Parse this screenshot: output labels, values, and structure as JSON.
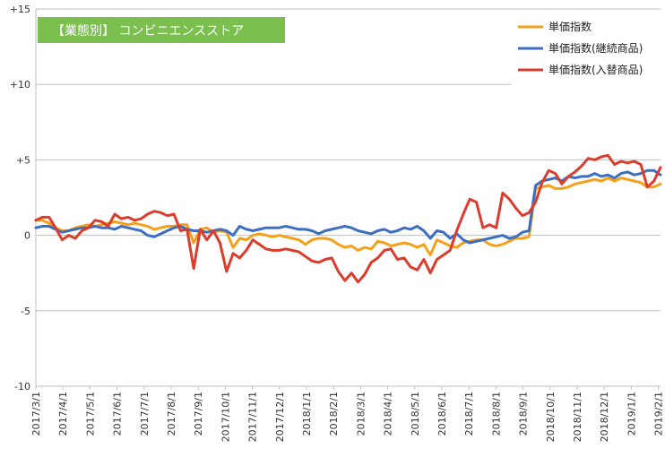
{
  "chart_data": {
    "type": "line",
    "title": "【業態別】 コンビニエンスストア",
    "title_bg_color": "#7bbf4e",
    "ylim": [
      -10,
      15
    ],
    "y_ticks": [
      {
        "value": 15,
        "label": "+15"
      },
      {
        "value": 10,
        "label": "+10"
      },
      {
        "value": 5,
        "label": "+5"
      },
      {
        "value": 0,
        "label": "0"
      },
      {
        "value": -5,
        "label": "-5"
      },
      {
        "value": -10,
        "label": "-10"
      }
    ],
    "grid": true,
    "legend_position": "top-right",
    "x_labels": [
      "2017/3/1",
      "2017/4/1",
      "2017/5/1",
      "2017/6/1",
      "2017/7/1",
      "2017/8/1",
      "2017/9/1",
      "2017/10/1",
      "2017/11/1",
      "2017/12/1",
      "2018/1/1",
      "2018/2/1",
      "2018/3/1",
      "2018/4/1",
      "2018/5/1",
      "2018/6/1",
      "2018/7/1",
      "2018/8/1",
      "2018/9/1",
      "2018/10/1",
      "2018/11/1",
      "2018/12/1",
      "2019/1/1",
      "2019/2/1"
    ],
    "series": [
      {
        "name": "単価指数",
        "color": "#f5a01a",
        "values": [
          1.0,
          1.0,
          0.8,
          0.5,
          0.3,
          0.3,
          0.5,
          0.6,
          0.7,
          0.6,
          0.7,
          0.8,
          0.9,
          0.8,
          0.7,
          0.8,
          0.7,
          0.6,
          0.4,
          0.5,
          0.6,
          0.6,
          0.7,
          0.7,
          -0.5,
          0.4,
          0.5,
          0.2,
          0.3,
          0.2,
          -0.8,
          -0.2,
          -0.3,
          0.0,
          0.1,
          0.0,
          -0.1,
          0.0,
          -0.1,
          -0.2,
          -0.3,
          -0.6,
          -0.3,
          -0.2,
          -0.2,
          -0.3,
          -0.6,
          -0.8,
          -0.7,
          -1.0,
          -0.8,
          -0.9,
          -0.4,
          -0.5,
          -0.7,
          -0.6,
          -0.5,
          -0.6,
          -0.8,
          -0.6,
          -1.3,
          -0.3,
          -0.5,
          -0.7,
          -0.8,
          -0.5,
          -0.4,
          -0.3,
          -0.3,
          -0.6,
          -0.7,
          -0.6,
          -0.4,
          -0.2,
          -0.2,
          -0.1,
          3.1,
          3.2,
          3.3,
          3.1,
          3.1,
          3.2,
          3.4,
          3.5,
          3.6,
          3.7,
          3.6,
          3.8,
          3.6,
          3.8,
          3.7,
          3.6,
          3.5,
          3.2,
          3.2,
          3.4
        ]
      },
      {
        "name": "単価指数(継続商品)",
        "color": "#3c6fc4",
        "values": [
          0.5,
          0.6,
          0.6,
          0.4,
          0.2,
          0.3,
          0.4,
          0.5,
          0.5,
          0.6,
          0.5,
          0.5,
          0.4,
          0.6,
          0.5,
          0.4,
          0.3,
          0.0,
          -0.1,
          0.1,
          0.3,
          0.5,
          0.6,
          0.4,
          0.3,
          0.3,
          0.2,
          0.3,
          0.4,
          0.3,
          0.0,
          0.6,
          0.4,
          0.3,
          0.4,
          0.5,
          0.5,
          0.5,
          0.6,
          0.5,
          0.4,
          0.4,
          0.3,
          0.1,
          0.3,
          0.4,
          0.5,
          0.6,
          0.5,
          0.3,
          0.2,
          0.1,
          0.3,
          0.4,
          0.2,
          0.3,
          0.5,
          0.4,
          0.6,
          0.3,
          -0.2,
          0.3,
          0.2,
          -0.2,
          0.1,
          -0.3,
          -0.5,
          -0.4,
          -0.3,
          -0.2,
          -0.1,
          0.0,
          -0.2,
          -0.1,
          0.2,
          0.3,
          3.3,
          3.6,
          3.7,
          3.8,
          3.6,
          3.9,
          3.8,
          3.9,
          3.9,
          4.1,
          3.9,
          4.0,
          3.8,
          4.1,
          4.2,
          4.0,
          4.1,
          4.3,
          4.3,
          4.0
        ]
      },
      {
        "name": "単価指数(入替商品)",
        "color": "#dc3c2c",
        "values": [
          1.0,
          1.2,
          1.2,
          0.5,
          -0.3,
          0.0,
          -0.2,
          0.3,
          0.5,
          1.0,
          0.9,
          0.6,
          1.4,
          1.1,
          1.2,
          1.0,
          1.1,
          1.4,
          1.6,
          1.5,
          1.3,
          1.4,
          0.3,
          0.4,
          -2.2,
          0.4,
          -0.3,
          0.3,
          -0.5,
          -2.4,
          -1.2,
          -1.5,
          -1.0,
          -0.3,
          -0.6,
          -0.9,
          -1.0,
          -1.0,
          -0.9,
          -1.0,
          -1.1,
          -1.4,
          -1.7,
          -1.8,
          -1.6,
          -1.5,
          -2.4,
          -3.0,
          -2.5,
          -3.1,
          -2.6,
          -1.8,
          -1.5,
          -1.0,
          -0.9,
          -1.6,
          -1.5,
          -2.1,
          -2.3,
          -1.6,
          -2.5,
          -1.6,
          -1.3,
          -1.0,
          0.3,
          1.4,
          2.4,
          2.2,
          0.5,
          0.7,
          0.5,
          2.8,
          2.4,
          1.8,
          1.3,
          1.5,
          2.2,
          3.5,
          4.3,
          4.1,
          3.4,
          3.9,
          4.2,
          4.6,
          5.1,
          5.0,
          5.2,
          5.3,
          4.7,
          4.9,
          4.8,
          4.9,
          4.7,
          3.2,
          3.6,
          4.5
        ]
      }
    ]
  }
}
